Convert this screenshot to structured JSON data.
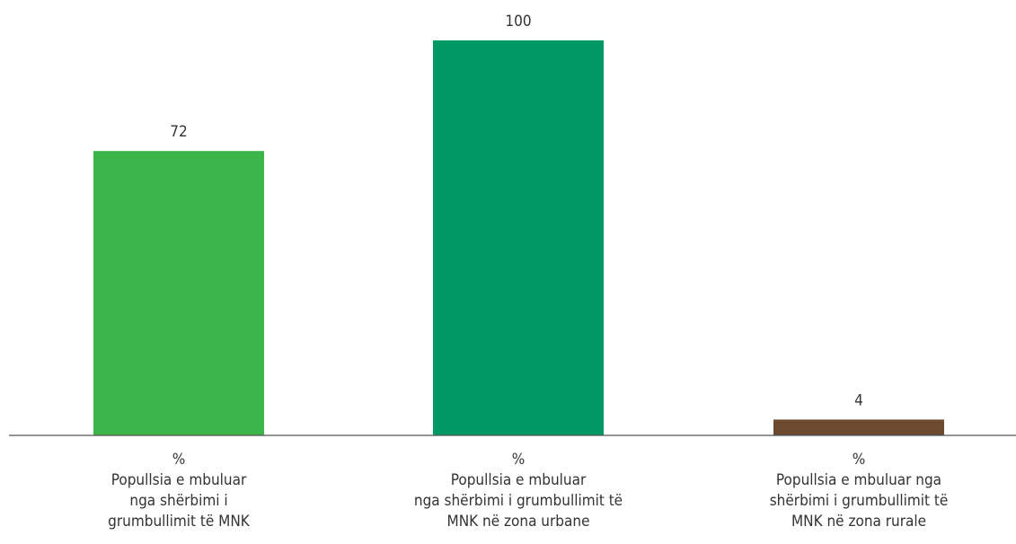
{
  "chart_data": {
    "type": "bar",
    "categories": [
      [
        "%",
        "Popullsia e mbuluar",
        "nga shërbimi i",
        "grumbullimit të MNK"
      ],
      [
        "%",
        "Popullsia e mbuluar",
        "nga shërbimi i grumbullimit të",
        "MNK në zona urbane"
      ],
      [
        "%",
        "Popullsia e mbuluar nga",
        "shërbimi i grumbullimit të",
        "MNK në zona rurale"
      ]
    ],
    "values": [
      72,
      100,
      4
    ],
    "value_labels": [
      "72",
      "100",
      "4"
    ],
    "colors": [
      "#3cb54a",
      "#009966",
      "#6b4a2f"
    ],
    "ylim": [
      0,
      100
    ],
    "grid": false,
    "legend": "none",
    "title": "",
    "xlabel": "",
    "ylabel": ""
  }
}
